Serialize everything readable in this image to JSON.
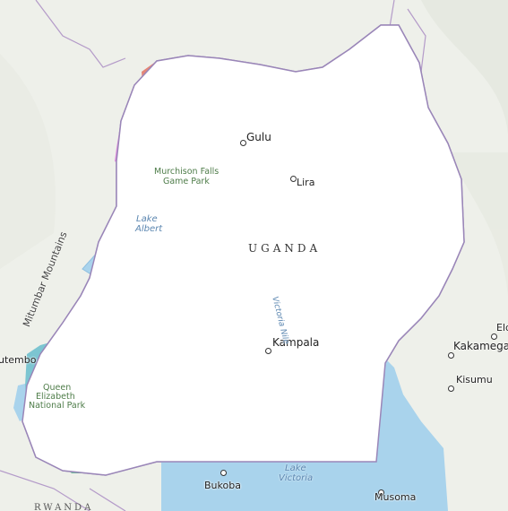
{
  "map": {
    "country_label": "UGANDA",
    "neighbor_label": "RWANDA",
    "cities": [
      {
        "id": "gulu",
        "name": "Gulu"
      },
      {
        "id": "lira",
        "name": "Lira"
      },
      {
        "id": "kampala",
        "name": "Kampala"
      },
      {
        "id": "kasese",
        "name": "utembo"
      },
      {
        "id": "bukoba",
        "name": "Bukoba"
      },
      {
        "id": "musoma",
        "name": "Musoma"
      },
      {
        "id": "kakamega",
        "name": "Kakamega"
      },
      {
        "id": "kisumu",
        "name": "Kisumu"
      },
      {
        "id": "eld",
        "name": "Eld"
      }
    ],
    "water": [
      {
        "id": "lake-albert",
        "lines": [
          "Lake",
          "Albert"
        ]
      },
      {
        "id": "lake-victoria",
        "lines": [
          "Lake",
          "Victoria"
        ]
      },
      {
        "id": "victoria-nile",
        "lines": [
          "Victoria Nile"
        ]
      }
    ],
    "parks": [
      {
        "id": "murchison",
        "lines": [
          "Murchison Falls",
          "Game Park"
        ]
      },
      {
        "id": "queen-elizabeth",
        "lines": [
          "Queen",
          "Elizabeth",
          "National Park"
        ]
      }
    ],
    "mountains": "Mitumbar Mountains",
    "colors": {
      "land": "#eef0ea",
      "uganda": "#ffffff",
      "lake": "#a9d3ec",
      "border": "#8e7ba8",
      "district": "#444444",
      "red": "#d9564c",
      "darkred": "#b03a2b",
      "pink": "#dd88dd",
      "orange": "#e8a07a",
      "purple": "#8177cf",
      "darkpurple": "#3d2a55",
      "green": "#88d27c",
      "darkgreen": "#3e7a22",
      "teal": "#7cc5d1",
      "darkteal": "#49684c",
      "seagreen": "#6db89b",
      "darkseagreen": "#3f6a36",
      "tan": "#d7b184",
      "brown": "#8c5a14",
      "khaki": "#c4b896"
    }
  }
}
